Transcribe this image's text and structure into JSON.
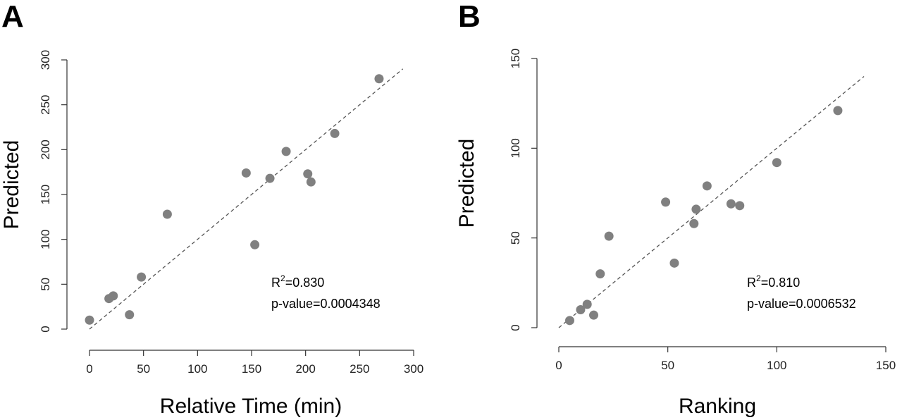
{
  "chart_data": [
    {
      "type": "scatter",
      "panel_label": "A",
      "title": "",
      "xlabel": "Relative Time (min)",
      "ylabel": "Predicted",
      "xlim": [
        0,
        300
      ],
      "ylim": [
        0,
        300
      ],
      "xticks": [
        "0",
        "50",
        "100",
        "150",
        "200",
        "250",
        "300"
      ],
      "yticks": [
        "0",
        "50",
        "100",
        "150",
        "200",
        "250",
        "300"
      ],
      "grid": false,
      "points": [
        {
          "x": 0,
          "y": 10
        },
        {
          "x": 18,
          "y": 34
        },
        {
          "x": 22,
          "y": 37
        },
        {
          "x": 37,
          "y": 16
        },
        {
          "x": 48,
          "y": 58
        },
        {
          "x": 72,
          "y": 128
        },
        {
          "x": 145,
          "y": 174
        },
        {
          "x": 153,
          "y": 94
        },
        {
          "x": 167,
          "y": 168
        },
        {
          "x": 182,
          "y": 198
        },
        {
          "x": 202,
          "y": 173
        },
        {
          "x": 205,
          "y": 164
        },
        {
          "x": 227,
          "y": 218
        },
        {
          "x": 268,
          "y": 279
        }
      ],
      "fit_line": {
        "x": [
          0,
          290
        ],
        "y": [
          0,
          290
        ],
        "style": "dashed"
      },
      "annotation": {
        "r2_prefix": "R",
        "r2_sup": "2",
        "r2_value": "=0.830",
        "pvalue": "p-value=0.0004348"
      }
    },
    {
      "type": "scatter",
      "panel_label": "B",
      "title": "",
      "xlabel": "Ranking",
      "ylabel": "Predicted",
      "xlim": [
        0,
        150
      ],
      "ylim": [
        0,
        150
      ],
      "xticks": [
        "0",
        "50",
        "100",
        "150"
      ],
      "yticks": [
        "0",
        "50",
        "100",
        "150"
      ],
      "grid": false,
      "points": [
        {
          "x": 5,
          "y": 4
        },
        {
          "x": 10,
          "y": 10
        },
        {
          "x": 13,
          "y": 13
        },
        {
          "x": 16,
          "y": 7
        },
        {
          "x": 19,
          "y": 30
        },
        {
          "x": 23,
          "y": 51
        },
        {
          "x": 49,
          "y": 70
        },
        {
          "x": 53,
          "y": 36
        },
        {
          "x": 62,
          "y": 58
        },
        {
          "x": 63,
          "y": 66
        },
        {
          "x": 68,
          "y": 79
        },
        {
          "x": 79,
          "y": 69
        },
        {
          "x": 83,
          "y": 68
        },
        {
          "x": 100,
          "y": 92
        },
        {
          "x": 128,
          "y": 121
        }
      ],
      "fit_line": {
        "x": [
          0,
          140
        ],
        "y": [
          0,
          140
        ],
        "style": "dashed"
      },
      "annotation": {
        "r2_prefix": "R",
        "r2_sup": "2",
        "r2_value": "=0.810",
        "pvalue": "p-value=0.0006532"
      }
    }
  ]
}
